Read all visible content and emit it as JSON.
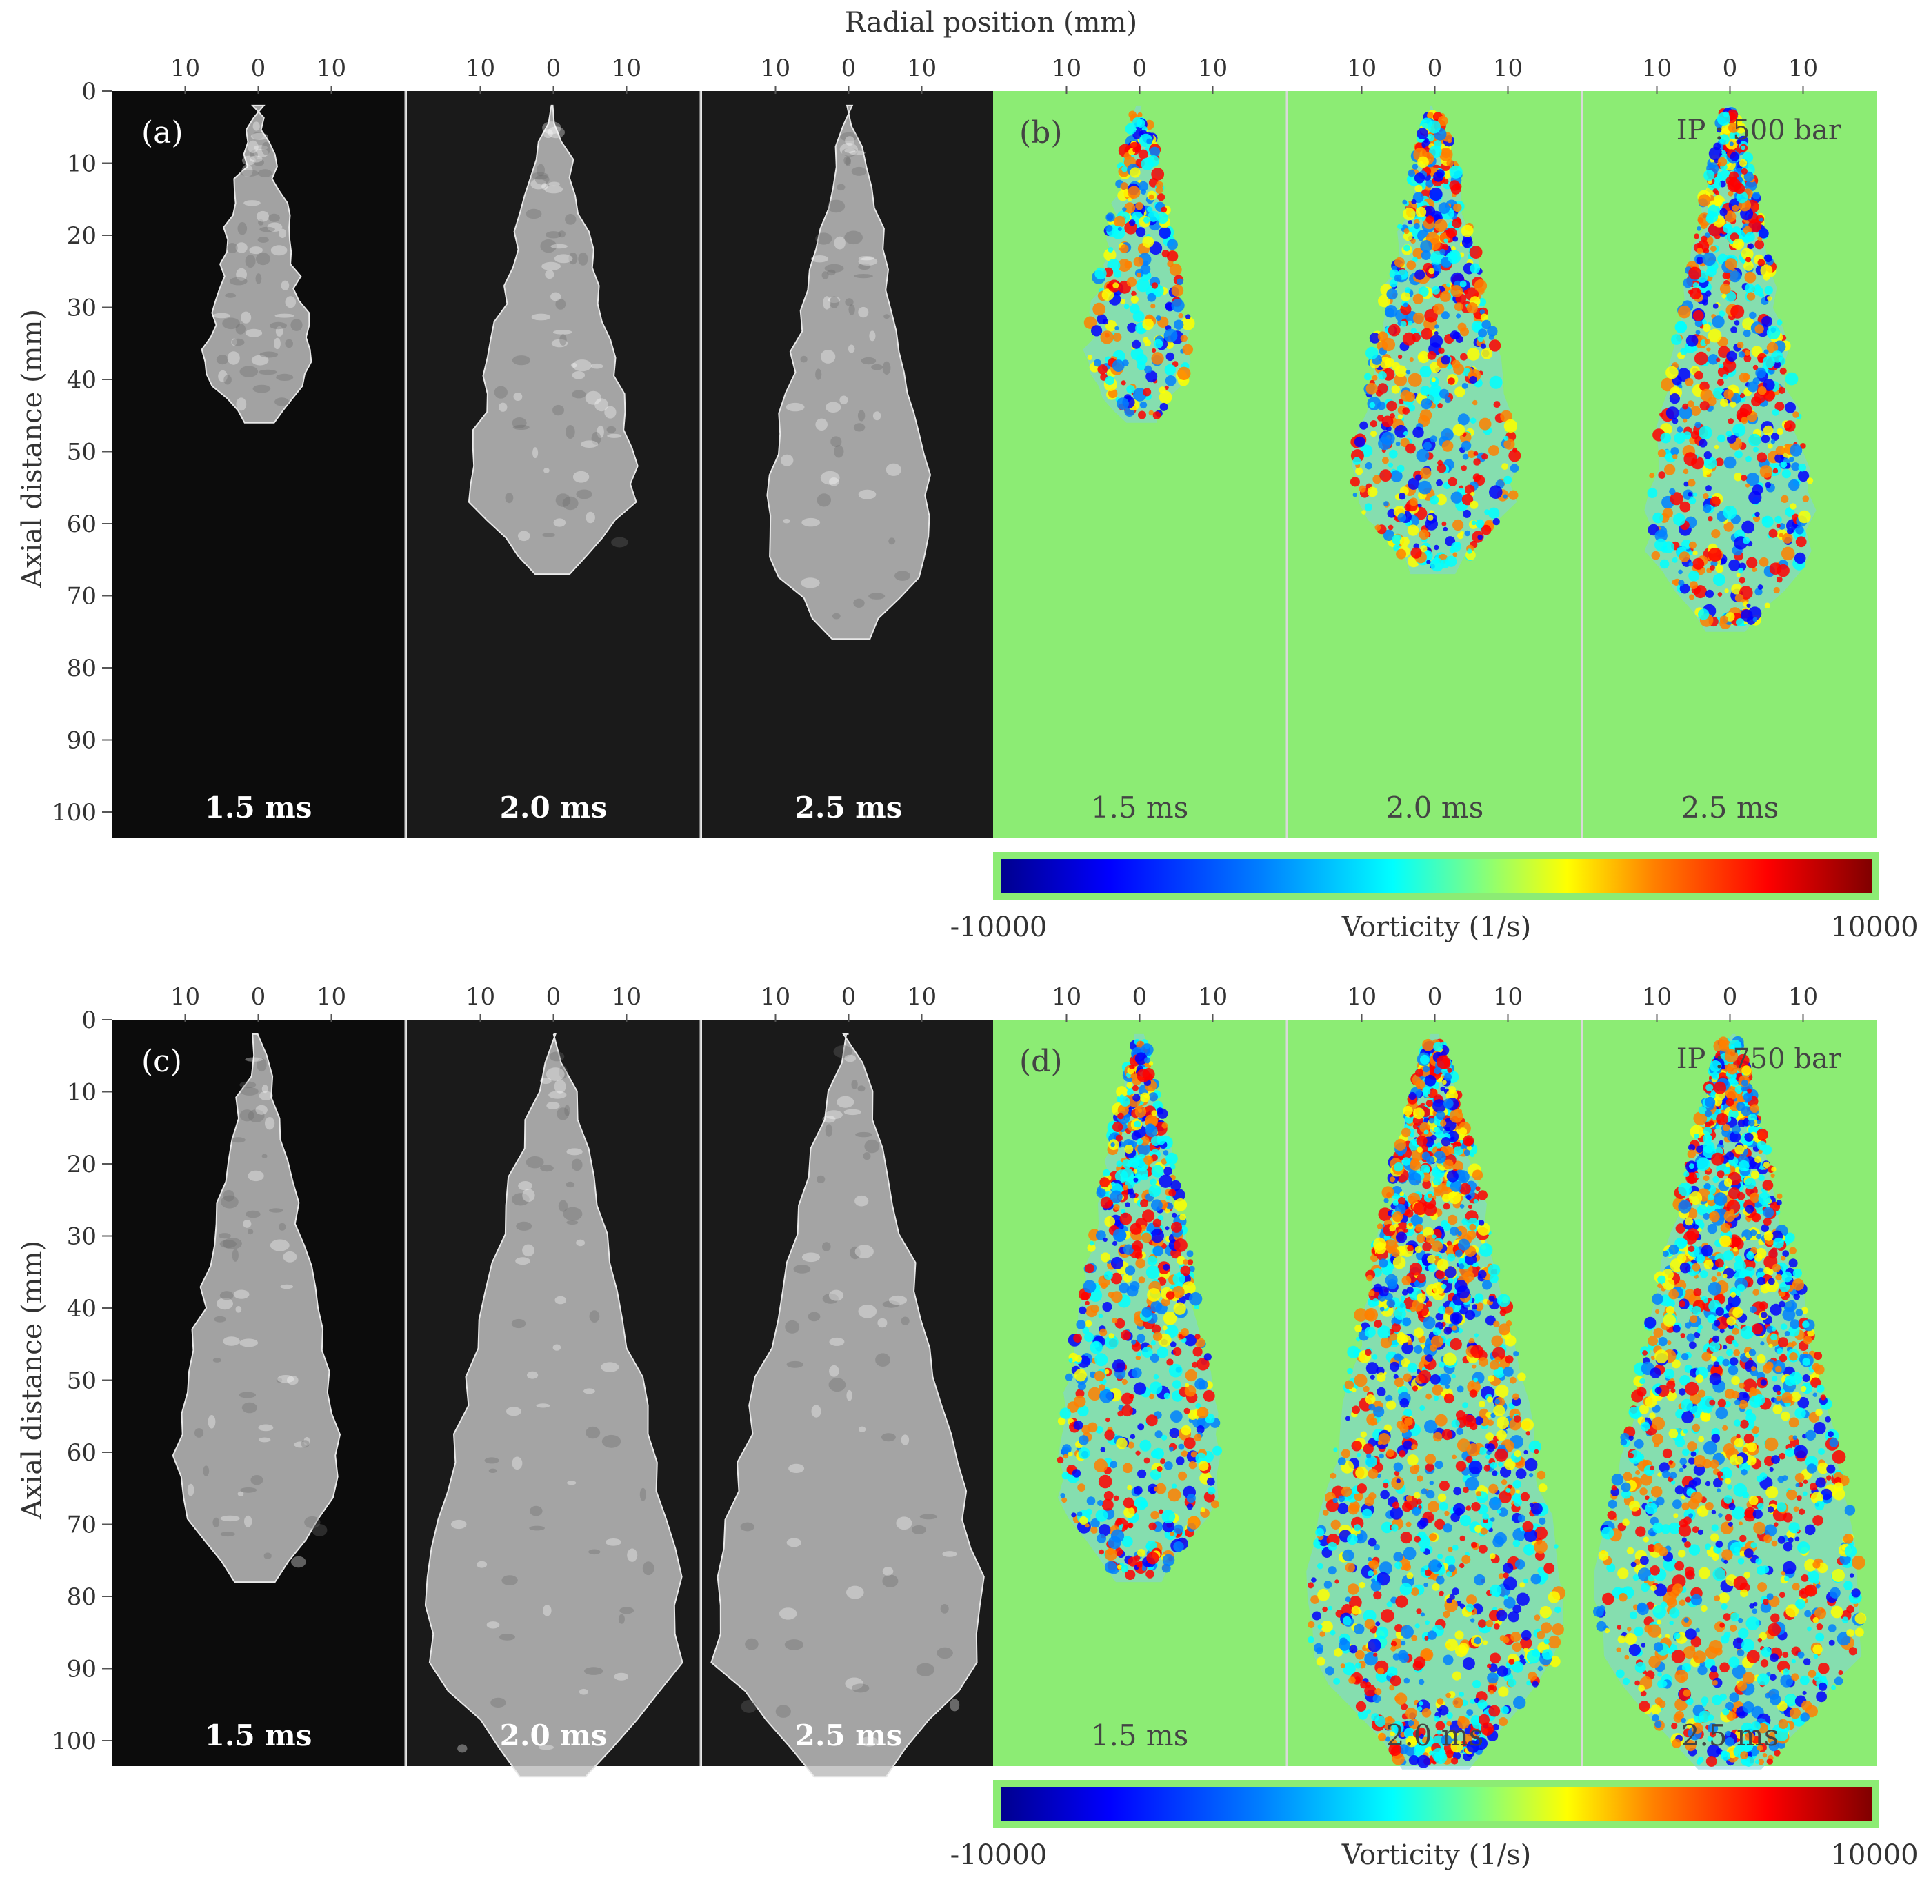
{
  "figure": {
    "radial_axis_label": "Radial position (mm)",
    "axial_axis_label": "Axial distance (mm)"
  },
  "chart_data": [
    {
      "type": "heatmap",
      "panel": "(a)",
      "image": "grayscale spray images",
      "columns": [
        {
          "time_label": "1.5 ms",
          "tip_penetration_mm": 46,
          "max_half_width_mm": 7
        },
        {
          "time_label": "2.0 ms",
          "tip_penetration_mm": 67,
          "max_half_width_mm": 11
        },
        {
          "time_label": "2.5 ms",
          "tip_penetration_mm": 76,
          "max_half_width_mm": 11
        }
      ],
      "x_ticks": [
        "10",
        "0",
        "10"
      ],
      "x_tick_values": [
        -10,
        0,
        10
      ],
      "y_ticks": [
        "0",
        "10",
        "20",
        "30",
        "40",
        "50",
        "60",
        "70",
        "80",
        "90",
        "100"
      ],
      "xlim": [
        -20,
        20
      ],
      "ylim": [
        0,
        105
      ]
    },
    {
      "type": "heatmap",
      "panel": "(b)",
      "annotation": "IP : 500 bar",
      "quantity": "Vorticity (1/s)",
      "colorbar": {
        "min": "-10000",
        "max": "10000",
        "label": "Vorticity (1/s)"
      },
      "columns": [
        {
          "time_label": "1.5 ms",
          "tip_penetration_mm": 46,
          "max_half_width_mm": 7
        },
        {
          "time_label": "2.0 ms",
          "tip_penetration_mm": 67,
          "max_half_width_mm": 11
        },
        {
          "time_label": "2.5 ms",
          "tip_penetration_mm": 75,
          "max_half_width_mm": 11
        }
      ],
      "x_ticks": [
        "10",
        "0",
        "10"
      ],
      "x_tick_values": [
        -10,
        0,
        10
      ],
      "xlim": [
        -20,
        20
      ],
      "ylim": [
        0,
        105
      ]
    },
    {
      "type": "heatmap",
      "panel": "(c)",
      "image": "grayscale spray images",
      "columns": [
        {
          "time_label": "1.5 ms",
          "tip_penetration_mm": 78,
          "max_half_width_mm": 11
        },
        {
          "time_label": "2.0 ms",
          "tip_penetration_mm": 105,
          "max_half_width_mm": 17
        },
        {
          "time_label": "2.5 ms",
          "tip_penetration_mm": 105,
          "max_half_width_mm": 18
        }
      ],
      "x_ticks": [
        "10",
        "0",
        "10"
      ],
      "x_tick_values": [
        -10,
        0,
        10
      ],
      "y_ticks": [
        "0",
        "10",
        "20",
        "30",
        "40",
        "50",
        "60",
        "70",
        "80",
        "90",
        "100"
      ],
      "xlim": [
        -20,
        20
      ],
      "ylim": [
        0,
        105
      ]
    },
    {
      "type": "heatmap",
      "panel": "(d)",
      "annotation": "IP : 750 bar",
      "quantity": "Vorticity (1/s)",
      "colorbar": {
        "min": "-10000",
        "max": "10000",
        "label": "Vorticity (1/s)"
      },
      "columns": [
        {
          "time_label": "1.5 ms",
          "tip_penetration_mm": 78,
          "max_half_width_mm": 11
        },
        {
          "time_label": "2.0 ms",
          "tip_penetration_mm": 104,
          "max_half_width_mm": 17
        },
        {
          "time_label": "2.5 ms",
          "tip_penetration_mm": 104,
          "max_half_width_mm": 18
        }
      ],
      "x_ticks": [
        "10",
        "0",
        "10"
      ],
      "x_tick_values": [
        -10,
        0,
        10
      ],
      "xlim": [
        -20,
        20
      ],
      "ylim": [
        0,
        105
      ]
    }
  ],
  "colors": {
    "jet": [
      "#00008f",
      "#0000ff",
      "#0080ff",
      "#00ffff",
      "#80ff80",
      "#ffff00",
      "#ff8000",
      "#ff0000",
      "#800000"
    ],
    "vorticity_background": "#8cec74",
    "grayscale_background": "#0c0c0c"
  }
}
